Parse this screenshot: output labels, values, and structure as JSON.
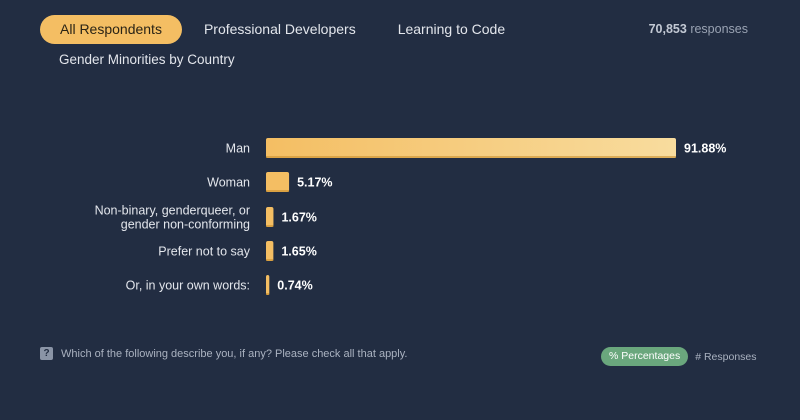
{
  "tabs": [
    {
      "label": "All Respondents",
      "active": true
    },
    {
      "label": "Professional Developers",
      "active": false
    },
    {
      "label": "Learning to Code",
      "active": false
    }
  ],
  "responses": {
    "count": "70,853",
    "suffix": "responses"
  },
  "subtitle": "Gender Minorities by Country",
  "chart_data": {
    "type": "bar",
    "orientation": "horizontal",
    "categories": [
      [
        "Man"
      ],
      [
        "Woman"
      ],
      [
        "Non-binary, genderqueer, or",
        "gender non-conforming"
      ],
      [
        "Prefer not to say"
      ],
      [
        "Or, in your own words:"
      ]
    ],
    "values": [
      91.88,
      5.17,
      1.67,
      1.65,
      0.74
    ],
    "value_labels": [
      "91.88%",
      "5.17%",
      "1.67%",
      "1.65%",
      "0.74%"
    ],
    "unit": "%",
    "xlim": [
      0,
      91.88
    ],
    "grid": false,
    "bar_color": "#f4be63",
    "bar_color_light": "#f8dc9e"
  },
  "footer": {
    "question": "Which of the following describe you, if any? Please check all that apply.",
    "toggle_on": "% Percentages",
    "toggle_off": "# Responses",
    "toggle_on_color": "#6aa77d"
  }
}
